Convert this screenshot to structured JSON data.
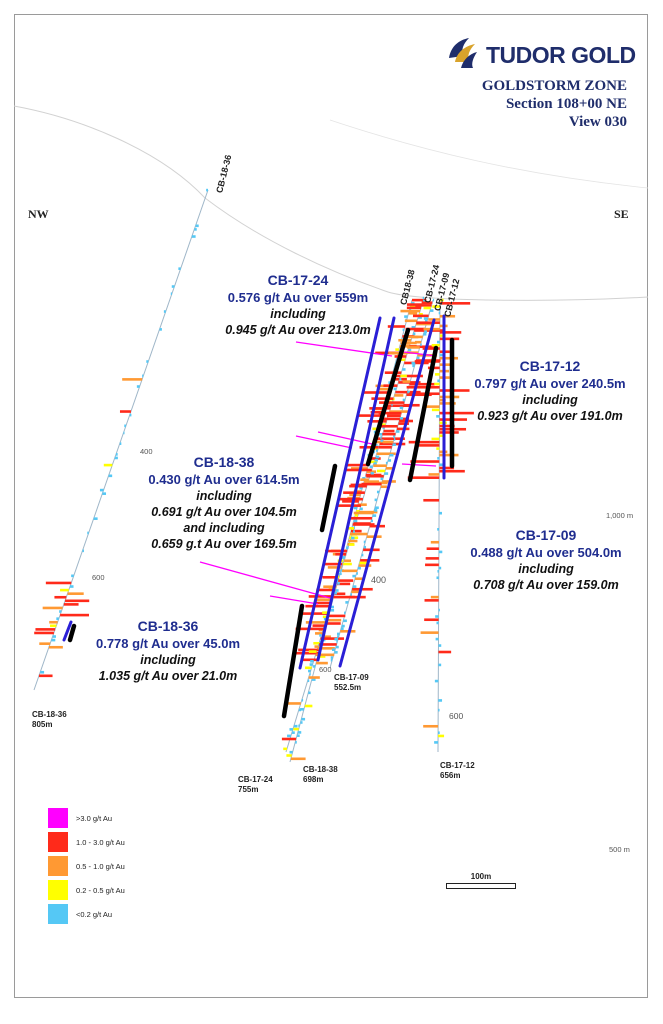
{
  "header": {
    "brand": "TUDOR GOLD",
    "zone": "GOLDSTORM ZONE",
    "section": "Section 108+00 NE",
    "view": "View 030"
  },
  "directions": {
    "left": "NW",
    "right": "SE"
  },
  "collars": {
    "cb1836": "CB-18-36",
    "cb1838": "CB18-38",
    "cb1724": "CB-17-24",
    "cb1709": "CB-17-09",
    "cb1712": "CB-17-12"
  },
  "callouts": {
    "cb1724": {
      "name": "CB-17-24",
      "grade": "0.576 g/t Au over 559m",
      "inc1": "including",
      "inc1_grade": "0.945 g/t Au over 213.0m"
    },
    "cb1712": {
      "name": "CB-17-12",
      "grade": "0.797 g/t Au over 240.5m",
      "inc1": "including",
      "inc1_grade": "0.923 g/t Au over 191.0m"
    },
    "cb1838": {
      "name": "CB-18-38",
      "grade": "0.430 g/t Au over 614.5m",
      "inc1": "including",
      "inc1_grade": "0.691 g/t Au over 104.5m",
      "inc2": "and including",
      "inc2_grade": "0.659 g.t Au over 169.5m"
    },
    "cb1709": {
      "name": "CB-17-09",
      "grade": "0.488 g/t Au over 504.0m",
      "inc1": "including",
      "inc1_grade": "0.708 g/t Au over 159.0m"
    },
    "cb1836": {
      "name": "CB-18-36",
      "grade": "0.778 g/t Au over 45.0m",
      "inc1": "including",
      "inc1_grade": "1.035 g/t Au over 21.0m"
    }
  },
  "hole_ends": {
    "cb1836": {
      "name": "CB-18-36",
      "depth": "805m"
    },
    "cb1709": {
      "name": "CB-17-09",
      "depth": "552.5m"
    },
    "cb1724": {
      "name": "CB-17-24",
      "depth": "755m"
    },
    "cb1838": {
      "name": "CB-18-38",
      "depth": "698m"
    },
    "cb1712": {
      "name": "CB-17-12",
      "depth": "656m"
    }
  },
  "depth_marks": {
    "cb1836_400": "400",
    "cb1836_600": "600",
    "cb1709_400": "400",
    "cb1838_600": "600",
    "cb1712_600": "600"
  },
  "elevations": {
    "upper": "1,000 m",
    "lower": "500 m"
  },
  "legend": [
    {
      "label": ">3.0 g/t Au",
      "color": "#ff00ff"
    },
    {
      "label": "1.0 - 3.0 g/t Au",
      "color": "#ff2a1a"
    },
    {
      "label": "0.5 - 1.0 g/t Au",
      "color": "#ff9933"
    },
    {
      "label": "0.2 - 0.5 g/t Au",
      "color": "#ffff00"
    },
    {
      "label": "<0.2 g/t Au",
      "color": "#55c8f5"
    }
  ],
  "scale_bar": {
    "label": "100m"
  },
  "colors": {
    "brand_navy": "#1f2d6b",
    "interval_blue": "#2a1fd6",
    "interval_black": "#000000",
    "trace": "#9fb6c8"
  }
}
